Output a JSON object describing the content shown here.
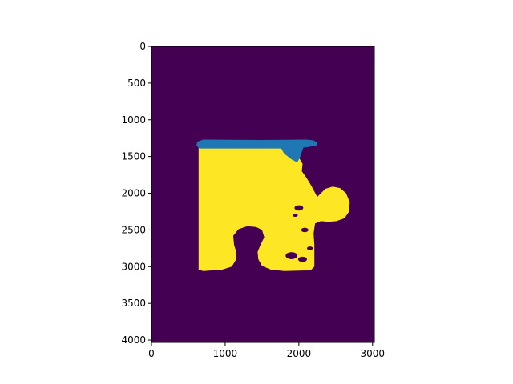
{
  "chart_data": {
    "type": "heatmap",
    "title": "",
    "xlabel": "",
    "ylabel": "",
    "image_size": [
      3024,
      4032
    ],
    "xlim": [
      0,
      3024
    ],
    "ylim": [
      4032,
      0
    ],
    "x_ticks": [
      0,
      1000,
      2000,
      3000
    ],
    "y_ticks": [
      0,
      500,
      1000,
      1500,
      2000,
      2500,
      3000,
      3500,
      4000
    ],
    "grid": false,
    "colors": {
      "background": "#440154",
      "mask": "#fde725",
      "overlay": "#1f77b4"
    },
    "regions": [
      {
        "label": "background",
        "value": 0
      },
      {
        "label": "puzzle-piece-mask",
        "value": 1,
        "outline": [
          [
            640,
            1340
          ],
          [
            1650,
            1330
          ],
          [
            1780,
            1380
          ],
          [
            1900,
            1420
          ],
          [
            1980,
            1480
          ],
          [
            2050,
            1600
          ],
          [
            2040,
            1700
          ],
          [
            2110,
            1800
          ],
          [
            2170,
            1900
          ],
          [
            2250,
            2050
          ],
          [
            2300,
            2000
          ],
          [
            2360,
            1940
          ],
          [
            2460,
            1910
          ],
          [
            2560,
            1930
          ],
          [
            2640,
            2000
          ],
          [
            2690,
            2120
          ],
          [
            2680,
            2250
          ],
          [
            2620,
            2340
          ],
          [
            2510,
            2380
          ],
          [
            2400,
            2390
          ],
          [
            2300,
            2380
          ],
          [
            2220,
            2410
          ],
          [
            2200,
            2550
          ],
          [
            2210,
            2700
          ],
          [
            2210,
            3000
          ],
          [
            2160,
            3050
          ],
          [
            1800,
            3060
          ],
          [
            1620,
            3040
          ],
          [
            1500,
            2990
          ],
          [
            1450,
            2900
          ],
          [
            1440,
            2800
          ],
          [
            1480,
            2700
          ],
          [
            1530,
            2600
          ],
          [
            1500,
            2500
          ],
          [
            1420,
            2460
          ],
          [
            1300,
            2450
          ],
          [
            1180,
            2490
          ],
          [
            1110,
            2580
          ],
          [
            1120,
            2700
          ],
          [
            1150,
            2800
          ],
          [
            1150,
            2900
          ],
          [
            1090,
            3000
          ],
          [
            960,
            3040
          ],
          [
            700,
            3060
          ],
          [
            640,
            3040
          ]
        ]
      },
      {
        "label": "top-edge-overlay",
        "value": 2,
        "outline": [
          [
            620,
            1300
          ],
          [
            700,
            1270
          ],
          [
            1500,
            1275
          ],
          [
            2100,
            1270
          ],
          [
            2200,
            1280
          ],
          [
            2250,
            1310
          ],
          [
            2240,
            1350
          ],
          [
            2130,
            1370
          ],
          [
            2060,
            1380
          ],
          [
            2020,
            1500
          ],
          [
            1980,
            1580
          ],
          [
            1900,
            1540
          ],
          [
            1800,
            1460
          ],
          [
            1760,
            1390
          ],
          [
            650,
            1390
          ],
          [
            610,
            1350
          ]
        ]
      }
    ]
  }
}
